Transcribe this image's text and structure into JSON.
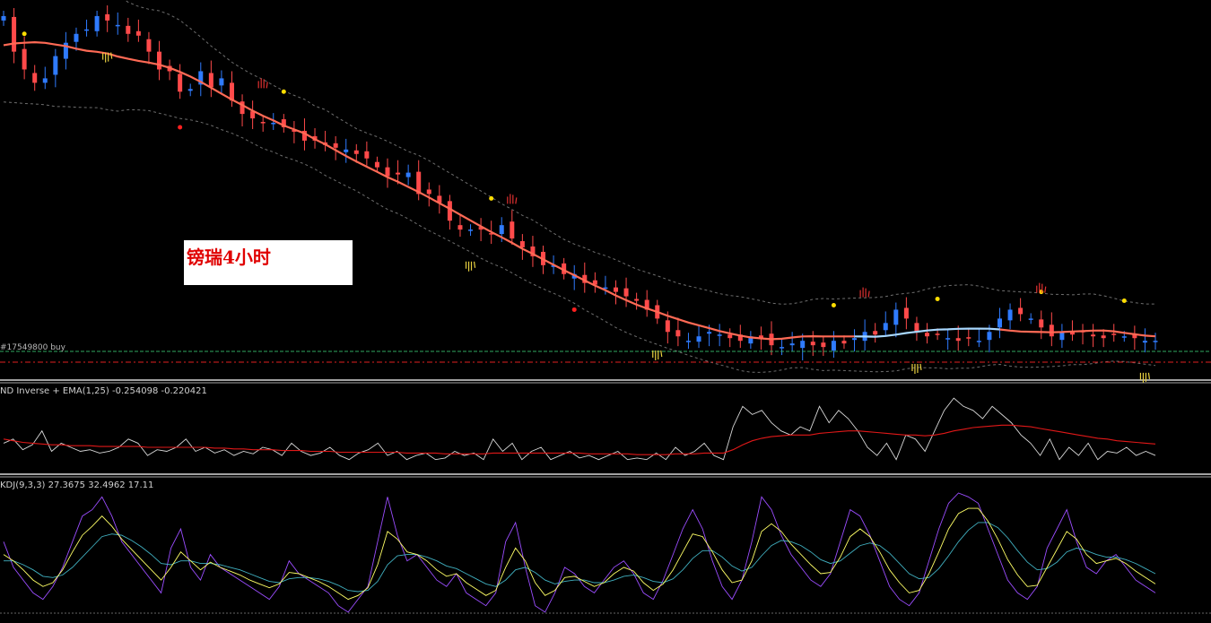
{
  "title": "镑瑞4小时",
  "order_line_label": "#17549800 buy",
  "colors": {
    "bull_candle": "#2f7bff",
    "bear_candle": "#ff4a4a",
    "ma_down": "#ff6a55",
    "ma_up": "#a8d8ff",
    "band": "#6e6e6e",
    "order_line": "#2fa860",
    "stop_line": "#e02020",
    "inverse_line": "#d8d8d8",
    "ema_line": "#e01818",
    "kdj_k": "#ffff66",
    "kdj_d": "#40b0c0",
    "kdj_j": "#9b4dff",
    "marker_yellow": "#ffdd00",
    "marker_red": "#ff2020",
    "separator": "#d8d8d8"
  },
  "chart_data": [
    {
      "type": "candlestick",
      "pane": "price",
      "title": "镑瑞4小时",
      "price_guide": [
        100,
        60,
        40,
        25,
        30,
        55,
        70,
        80,
        85,
        100,
        95,
        90,
        80,
        78,
        60,
        40,
        38,
        15,
        18,
        38,
        20,
        30,
        5,
        -10,
        -15,
        -20,
        -20,
        -25,
        -30,
        -40,
        -40,
        -45,
        -48,
        -50,
        -55,
        -60,
        -70,
        -80,
        -78,
        -76,
        -100,
        -100,
        -110,
        -130,
        -140,
        -140,
        -140,
        -145,
        -135,
        -150,
        -160,
        -170,
        -180,
        -180,
        -190,
        -190,
        -200,
        -202,
        -205,
        -210,
        -215,
        -220,
        -230,
        -240,
        -255,
        -260,
        -265,
        -260,
        -255,
        -258,
        -262,
        -265,
        -260,
        -262,
        -270,
        -272,
        -268,
        -265,
        -270,
        -272,
        -265,
        -268,
        -262,
        -255,
        -258,
        -245,
        -230,
        -240,
        -255,
        -260,
        -258,
        -262,
        -265,
        -262,
        -265,
        -255,
        -240,
        -230,
        -235,
        -240,
        -250,
        -260,
        -255,
        -258,
        -255,
        -260,
        -262,
        -258,
        -260,
        -262,
        -265,
        -265
      ],
      "series": [
        {
          "name": "",
          "kind": "moving_average"
        },
        {
          "name": "",
          "kind": "envelope_band"
        }
      ],
      "horizontal_lines": [
        "order_entry",
        "stop_level"
      ]
    },
    {
      "type": "line",
      "pane": "indicator_1",
      "title": "ND Inverse + EMA(1,25)",
      "values_shown": [
        -0.254098,
        -0.220421
      ],
      "series": [
        {
          "name": "ND Inverse",
          "values": [
            -0.1,
            -0.05,
            -0.18,
            -0.12,
            0.05,
            -0.2,
            -0.1,
            -0.15,
            -0.2,
            -0.18,
            -0.22,
            -0.2,
            -0.15,
            -0.05,
            -0.1,
            -0.25,
            -0.18,
            -0.2,
            -0.15,
            -0.05,
            -0.2,
            -0.15,
            -0.22,
            -0.18,
            -0.25,
            -0.2,
            -0.23,
            -0.15,
            -0.18,
            -0.25,
            -0.1,
            -0.2,
            -0.25,
            -0.22,
            -0.15,
            -0.25,
            -0.3,
            -0.22,
            -0.18,
            -0.1,
            -0.25,
            -0.2,
            -0.3,
            -0.25,
            -0.22,
            -0.3,
            -0.28,
            -0.2,
            -0.25,
            -0.22,
            -0.3,
            -0.05,
            -0.2,
            -0.1,
            -0.3,
            -0.2,
            -0.15,
            -0.3,
            -0.25,
            -0.2,
            -0.28,
            -0.25,
            -0.3,
            -0.25,
            -0.2,
            -0.3,
            -0.28,
            -0.3,
            -0.22,
            -0.3,
            -0.15,
            -0.25,
            -0.2,
            -0.1,
            -0.25,
            -0.3,
            0.1,
            0.35,
            0.25,
            0.3,
            0.15,
            0.05,
            0.0,
            0.1,
            0.05,
            0.35,
            0.15,
            0.3,
            0.2,
            0.05,
            -0.15,
            -0.25,
            -0.1,
            -0.3,
            0.0,
            -0.05,
            -0.2,
            0.05,
            0.3,
            0.45,
            0.35,
            0.3,
            0.2,
            0.35,
            0.25,
            0.15,
            0.0,
            -0.1,
            -0.25,
            -0.05,
            -0.3,
            -0.15,
            -0.25,
            -0.1,
            -0.3,
            -0.2,
            -0.22,
            -0.15,
            -0.25,
            -0.2,
            -0.25
          ]
        },
        {
          "name": "EMA(1,25)",
          "values": [
            -0.05,
            -0.07,
            -0.09,
            -0.1,
            -0.11,
            -0.12,
            -0.12,
            -0.13,
            -0.13,
            -0.13,
            -0.14,
            -0.14,
            -0.14,
            -0.14,
            -0.14,
            -0.15,
            -0.15,
            -0.15,
            -0.15,
            -0.15,
            -0.15,
            -0.15,
            -0.16,
            -0.16,
            -0.17,
            -0.17,
            -0.18,
            -0.18,
            -0.18,
            -0.19,
            -0.19,
            -0.19,
            -0.2,
            -0.2,
            -0.2,
            -0.21,
            -0.21,
            -0.21,
            -0.21,
            -0.21,
            -0.21,
            -0.21,
            -0.22,
            -0.22,
            -0.22,
            -0.22,
            -0.23,
            -0.23,
            -0.23,
            -0.23,
            -0.23,
            -0.22,
            -0.22,
            -0.22,
            -0.22,
            -0.22,
            -0.22,
            -0.22,
            -0.22,
            -0.22,
            -0.22,
            -0.23,
            -0.23,
            -0.23,
            -0.23,
            -0.23,
            -0.24,
            -0.24,
            -0.24,
            -0.24,
            -0.23,
            -0.23,
            -0.23,
            -0.22,
            -0.22,
            -0.22,
            -0.18,
            -0.12,
            -0.07,
            -0.04,
            -0.02,
            -0.01,
            0.0,
            0.0,
            0.0,
            0.02,
            0.03,
            0.04,
            0.05,
            0.05,
            0.04,
            0.03,
            0.02,
            0.01,
            0.0,
            0.0,
            -0.01,
            0.0,
            0.02,
            0.05,
            0.07,
            0.09,
            0.1,
            0.11,
            0.12,
            0.12,
            0.11,
            0.1,
            0.08,
            0.06,
            0.04,
            0.02,
            0.0,
            -0.02,
            -0.04,
            -0.05,
            -0.07,
            -0.08,
            -0.09,
            -0.1,
            -0.11
          ]
        }
      ]
    },
    {
      "type": "line",
      "pane": "indicator_2",
      "title": "KDJ(9,3,3)",
      "values_shown": [
        27.3675,
        32.4962,
        17.11
      ],
      "series": [
        {
          "name": "J",
          "values": [
            60,
            40,
            30,
            20,
            15,
            25,
            40,
            60,
            80,
            85,
            95,
            80,
            60,
            50,
            40,
            30,
            20,
            55,
            70,
            40,
            30,
            50,
            40,
            35,
            30,
            25,
            20,
            15,
            25,
            45,
            35,
            30,
            25,
            20,
            10,
            5,
            15,
            25,
            60,
            95,
            65,
            45,
            50,
            40,
            30,
            25,
            35,
            20,
            15,
            10,
            20,
            60,
            75,
            40,
            10,
            5,
            20,
            40,
            35,
            25,
            20,
            30,
            40,
            45,
            35,
            20,
            15,
            30,
            50,
            70,
            85,
            70,
            45,
            25,
            15,
            30,
            60,
            95,
            85,
            65,
            50,
            40,
            30,
            25,
            35,
            60,
            85,
            80,
            65,
            45,
            25,
            15,
            10,
            20,
            45,
            70,
            90,
            98,
            95,
            90,
            70,
            50,
            30,
            20,
            15,
            25,
            55,
            70,
            85,
            60,
            40,
            35,
            45,
            50,
            40,
            30,
            25,
            20
          ]
        },
        {
          "name": "K",
          "values": [
            50,
            45,
            38,
            30,
            25,
            28,
            38,
            52,
            65,
            72,
            80,
            72,
            62,
            54,
            46,
            38,
            30,
            40,
            52,
            45,
            38,
            44,
            40,
            37,
            34,
            30,
            27,
            24,
            27,
            36,
            35,
            32,
            29,
            25,
            20,
            15,
            18,
            24,
            42,
            68,
            62,
            52,
            50,
            45,
            38,
            33,
            35,
            28,
            23,
            18,
            22,
            40,
            55,
            45,
            28,
            18,
            22,
            32,
            33,
            29,
            25,
            28,
            35,
            40,
            37,
            28,
            22,
            27,
            38,
            52,
            66,
            64,
            52,
            38,
            28,
            30,
            45,
            68,
            74,
            68,
            58,
            50,
            42,
            35,
            36,
            48,
            64,
            70,
            64,
            52,
            38,
            28,
            20,
            22,
            35,
            52,
            70,
            82,
            86,
            86,
            76,
            62,
            46,
            34,
            25,
            26,
            40,
            54,
            68,
            62,
            50,
            43,
            45,
            47,
            43,
            37,
            32,
            27
          ]
        },
        {
          "name": "D",
          "values": [
            45,
            45,
            42,
            38,
            33,
            32,
            34,
            40,
            48,
            56,
            64,
            66,
            65,
            61,
            56,
            50,
            43,
            42,
            45,
            45,
            43,
            43,
            42,
            40,
            38,
            35,
            32,
            29,
            28,
            31,
            32,
            32,
            31,
            29,
            26,
            22,
            21,
            22,
            29,
            42,
            49,
            50,
            50,
            48,
            45,
            41,
            39,
            35,
            31,
            27,
            25,
            30,
            38,
            40,
            36,
            30,
            27,
            29,
            30,
            30,
            28,
            28,
            30,
            33,
            34,
            32,
            29,
            28,
            31,
            38,
            47,
            53,
            53,
            48,
            41,
            37,
            40,
            49,
            57,
            61,
            60,
            57,
            52,
            46,
            43,
            45,
            51,
            57,
            59,
            57,
            51,
            43,
            35,
            31,
            32,
            39,
            49,
            60,
            69,
            75,
            75,
            71,
            63,
            53,
            44,
            38,
            39,
            44,
            52,
            55,
            53,
            50,
            48,
            48,
            46,
            43,
            39,
            35
          ]
        }
      ]
    }
  ]
}
